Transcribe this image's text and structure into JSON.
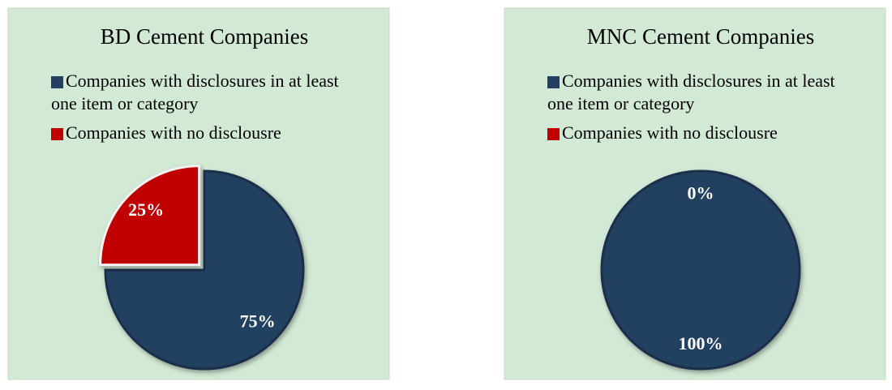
{
  "chart_data": [
    {
      "type": "pie",
      "title": "BD Cement Companies",
      "categories": [
        "Companies with disclosures in at least one item or category",
        "Companies with no disclousre"
      ],
      "values": [
        75,
        25
      ],
      "value_labels": [
        "75%",
        "25%"
      ],
      "colors": [
        "#243f60",
        "#c00000"
      ],
      "legend": "top"
    },
    {
      "type": "pie",
      "title": "MNC Cement Companies",
      "categories": [
        "Companies with disclosures in at least one item or category",
        "Companies with no disclousre"
      ],
      "values": [
        100,
        0
      ],
      "value_labels": [
        "100%",
        "0%"
      ],
      "colors": [
        "#243f60",
        "#c00000"
      ],
      "legend": "top"
    }
  ]
}
